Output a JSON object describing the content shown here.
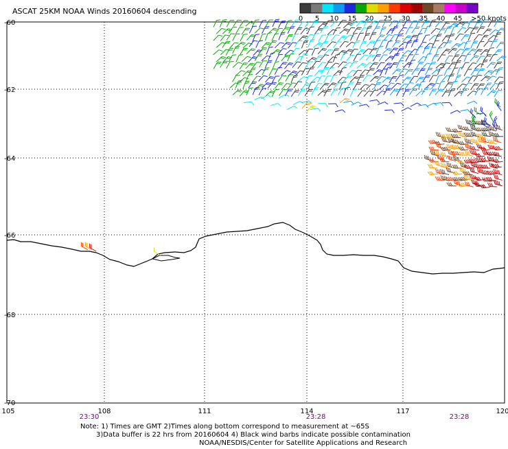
{
  "title": "ASCAT 25KM NOAA Winds 20160604 descending",
  "legend": {
    "labels": [
      "0",
      "5",
      "10",
      "15",
      "20",
      "25",
      "30",
      "35",
      "40",
      "45",
      ">50 knots"
    ],
    "colors": [
      "#3c3c3c",
      "#7a7a7a",
      "#00e6ff",
      "#0a9cf5",
      "#1e28dc",
      "#00aa00",
      "#dcdc00",
      "#ffa000",
      "#ff3c00",
      "#dc0000",
      "#a00000",
      "#6e4628",
      "#a87c64",
      "#ff00ff",
      "#c800c8",
      "#7800c8"
    ]
  },
  "map": {
    "lat_labels": [
      "-60",
      "-62",
      "-64",
      "-66",
      "-68",
      "-70"
    ],
    "lon_labels": [
      "105",
      "108",
      "111",
      "114",
      "117",
      "120"
    ],
    "times": [
      "23:30",
      "23:28",
      "23:28"
    ],
    "time_color": "#800080",
    "grid": true
  },
  "notes": {
    "line1": "Note: 1) Times are GMT 2)Times along bottom correspond to measurement at ~65S",
    "line2": "3)Data buffer is 22 hrs from 20160604 4) Black wind barbs indicate possible contamination",
    "line3": "NOAA/NESDIS/Center for Satellite Applications and Research"
  }
}
